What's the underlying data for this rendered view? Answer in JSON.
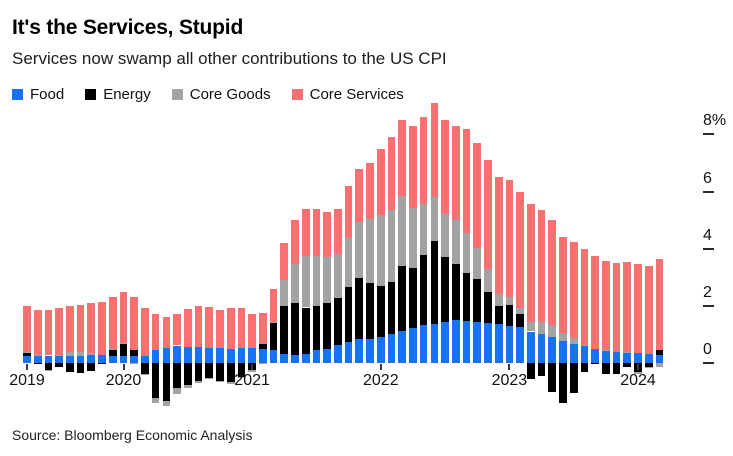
{
  "header": {
    "title": "It's the Services, Stupid",
    "subtitle": "Services now swamp all other contributions to the US CPI"
  },
  "source": "Source: Bloomberg Economic Analysis",
  "chart_data": {
    "type": "bar",
    "stacked": true,
    "unit": "percentage-point contribution to US CPI year-over-year",
    "ylim": [
      -2,
      9.3
    ],
    "yticks": [
      8,
      6,
      4,
      2,
      0
    ],
    "ytick_labels": [
      "8%",
      "6",
      "4",
      "2",
      "0"
    ],
    "legend_position": "top-left",
    "grid": false,
    "xticks": [
      {
        "index": 0,
        "label": "2019"
      },
      {
        "index": 9,
        "label": "2020"
      },
      {
        "index": 21,
        "label": "2021"
      },
      {
        "index": 33,
        "label": "2022"
      },
      {
        "index": 45,
        "label": "2023"
      },
      {
        "index": 57,
        "label": "2024"
      }
    ],
    "x": [
      "Apr 2019",
      "May 2019",
      "Jun 2019",
      "Jul 2019",
      "Aug 2019",
      "Sep 2019",
      "Oct 2019",
      "Nov 2019",
      "Dec 2019",
      "Jan 2020",
      "Feb 2020",
      "Mar 2020",
      "Apr 2020",
      "May 2020",
      "Jun 2020",
      "Jul 2020",
      "Aug 2020",
      "Sep 2020",
      "Oct 2020",
      "Nov 2020",
      "Dec 2020",
      "Jan 2021",
      "Feb 2021",
      "Mar 2021",
      "Apr 2021",
      "May 2021",
      "Jun 2021",
      "Jul 2021",
      "Aug 2021",
      "Sep 2021",
      "Oct 2021",
      "Nov 2021",
      "Dec 2021",
      "Jan 2022",
      "Feb 2022",
      "Mar 2022",
      "Apr 2022",
      "May 2022",
      "Jun 2022",
      "Jul 2022",
      "Aug 2022",
      "Sep 2022",
      "Oct 2022",
      "Nov 2022",
      "Dec 2022",
      "Jan 2023",
      "Feb 2023",
      "Mar 2023",
      "Apr 2023",
      "May 2023",
      "Jun 2023",
      "Jul 2023",
      "Aug 2023",
      "Sep 2023",
      "Oct 2023",
      "Nov 2023",
      "Dec 2023",
      "Jan 2024",
      "Feb 2024",
      "Mar 2024"
    ],
    "series": [
      {
        "name": "Food",
        "color": "#1873f4",
        "values": [
          0.24,
          0.27,
          0.26,
          0.24,
          0.23,
          0.24,
          0.28,
          0.27,
          0.24,
          0.24,
          0.24,
          0.26,
          0.47,
          0.54,
          0.61,
          0.55,
          0.55,
          0.53,
          0.53,
          0.5,
          0.53,
          0.51,
          0.49,
          0.47,
          0.32,
          0.29,
          0.32,
          0.46,
          0.5,
          0.62,
          0.72,
          0.83,
          0.85,
          0.9,
          1.01,
          1.13,
          1.21,
          1.33,
          1.36,
          1.43,
          1.5,
          1.48,
          1.43,
          1.4,
          1.36,
          1.3,
          1.25,
          1.1,
          1.02,
          0.9,
          0.77,
          0.66,
          0.58,
          0.5,
          0.44,
          0.39,
          0.36,
          0.34,
          0.3,
          0.29
        ]
      },
      {
        "name": "Energy",
        "color": "#000000",
        "values": [
          0.12,
          -0.04,
          -0.24,
          -0.14,
          -0.31,
          -0.34,
          -0.29,
          -0.04,
          0.24,
          0.43,
          0.2,
          -0.4,
          -1.24,
          -1.32,
          -0.88,
          -0.78,
          -0.63,
          -0.54,
          -0.64,
          -0.66,
          -0.49,
          -0.25,
          0.17,
          0.92,
          1.66,
          1.81,
          1.62,
          1.55,
          1.6,
          1.66,
          1.95,
          2.14,
          1.95,
          1.8,
          1.83,
          2.28,
          2.1,
          2.45,
          2.9,
          2.28,
          1.98,
          1.66,
          1.5,
          1.1,
          0.62,
          0.72,
          0.45,
          -0.55,
          -0.45,
          -1.0,
          -1.4,
          -1.05,
          -0.3,
          -0.04,
          -0.37,
          -0.4,
          -0.15,
          -0.33,
          -0.13,
          0.15
        ]
      },
      {
        "name": "Core Goods",
        "color": "#a3a3a3",
        "values": [
          0.03,
          0.01,
          -0.01,
          0.04,
          0.16,
          0.14,
          0.06,
          0.0,
          0.02,
          0.02,
          -0.02,
          -0.04,
          -0.18,
          -0.2,
          -0.22,
          -0.1,
          -0.06,
          -0.02,
          -0.02,
          -0.06,
          -0.04,
          -0.06,
          -0.04,
          0.05,
          0.93,
          1.36,
          1.8,
          1.75,
          1.6,
          1.55,
          1.7,
          1.95,
          2.25,
          2.48,
          2.5,
          2.45,
          2.1,
          1.8,
          1.55,
          1.5,
          1.52,
          1.4,
          1.1,
          0.8,
          0.45,
          0.3,
          0.21,
          0.32,
          0.42,
          0.42,
          0.28,
          0.2,
          0.04,
          0.0,
          0.02,
          0.0,
          0.02,
          -0.06,
          -0.06,
          -0.15
        ]
      },
      {
        "name": "Core Services",
        "color": "#fa7070",
        "values": [
          1.61,
          1.56,
          1.59,
          1.66,
          1.62,
          1.66,
          1.75,
          1.87,
          1.8,
          1.81,
          1.88,
          1.68,
          1.25,
          1.08,
          1.09,
          1.33,
          1.44,
          1.43,
          1.33,
          1.42,
          1.4,
          1.2,
          1.08,
          1.16,
          1.29,
          1.54,
          1.66,
          1.64,
          1.6,
          1.57,
          1.83,
          1.88,
          1.95,
          2.32,
          2.56,
          2.64,
          2.89,
          3.02,
          3.29,
          3.29,
          3.3,
          3.66,
          3.67,
          3.8,
          4.07,
          4.08,
          4.09,
          4.13,
          3.91,
          3.68,
          3.35,
          3.39,
          3.38,
          3.24,
          3.11,
          3.11,
          3.17,
          3.13,
          3.09,
          3.21
        ]
      }
    ]
  }
}
